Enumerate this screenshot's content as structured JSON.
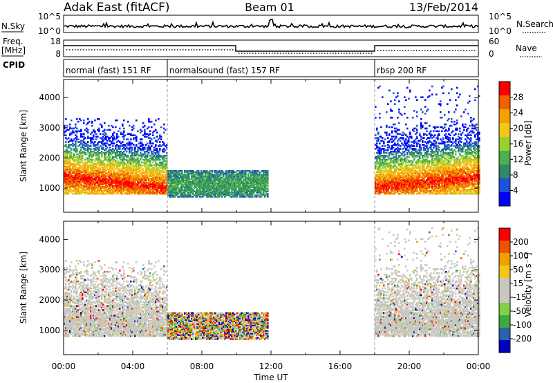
{
  "header": {
    "station": "Adak East (fitACF)",
    "beam": "Beam 01",
    "date": "13/Feb/2014"
  },
  "strip_labels": {
    "nsky": "N.Sky",
    "nsky_hi": "10^5",
    "nsky_lo": "10^0",
    "nsearch": "N.Search",
    "nsearch_hi": "10^5",
    "nsearch_lo": "10^0",
    "freq_line1": "Freq.",
    "freq_line2": "[MHz]",
    "freq_hi": "18",
    "freq_lo": "8",
    "nave": "Nave",
    "nave_hi": "60",
    "nave_lo": "0",
    "cpid": "CPID"
  },
  "cpid_segments": [
    {
      "label": "normal (fast) 151 RF",
      "start_h": 0,
      "end_h": 6
    },
    {
      "label": "normalsound (fast) 157 RF",
      "start_h": 6,
      "end_h": 18
    },
    {
      "label": "rbsp 200 RF",
      "start_h": 18,
      "end_h": 24
    }
  ],
  "colors": {
    "power_scale": [
      "#0000ff",
      "#1e50d8",
      "#2e8a6a",
      "#4caf50",
      "#9bd02c",
      "#f5c518",
      "#f5a000",
      "#f06000",
      "#ff0000"
    ],
    "velocity_scale": [
      "#ff0000",
      "#ee5500",
      "#f0a000",
      "#f5c518",
      "#c8c8c0",
      "#c8c8c0",
      "#7fd04a",
      "#3caa3c",
      "#2a60b0",
      "#0000c0"
    ],
    "ground_scatter": "#c8c8c0"
  },
  "chart_data": [
    {
      "type": "heatmap",
      "name": "power",
      "xlabel": "",
      "ylabel": "Slant Range [km]",
      "xlim": [
        0,
        24
      ],
      "ylim": [
        200,
        4600
      ],
      "yticks": [
        "1000",
        "2000",
        "3000",
        "4000"
      ],
      "colorbar": {
        "label": "Power [dB]",
        "ticks": [
          "4",
          "8",
          "12",
          "16",
          "20",
          "24",
          "28"
        ],
        "range": [
          0,
          32
        ]
      },
      "features": [
        {
          "desc": "echo band",
          "t_start": 0,
          "t_end": 6,
          "range_low": 800,
          "range_high": 3300,
          "peak_db": 30
        },
        {
          "desc": "echo band",
          "t_start": 6,
          "t_end": 11.8,
          "range_low": 700,
          "range_high": 1600,
          "peak_db": 12
        },
        {
          "desc": "echo band",
          "t_start": 18,
          "t_end": 24,
          "range_low": 800,
          "range_high": 4400,
          "peak_db": 30
        }
      ]
    },
    {
      "type": "heatmap",
      "name": "velocity",
      "xlabel": "Time UT",
      "ylabel": "Slant Range [km]",
      "xlim": [
        0,
        24
      ],
      "ylim": [
        200,
        4600
      ],
      "xticks": [
        "00:00",
        "04:00",
        "08:00",
        "12:00",
        "16:00",
        "20:00",
        "00:00"
      ],
      "yticks": [
        "1000",
        "2000",
        "3000",
        "4000"
      ],
      "colorbar": {
        "label": "Velocity [m s⁻¹]",
        "ticks": [
          "200",
          "100",
          "50",
          "15",
          "-15",
          "-50",
          "-100",
          "-200"
        ],
        "range": [
          -250,
          250
        ]
      }
    }
  ]
}
